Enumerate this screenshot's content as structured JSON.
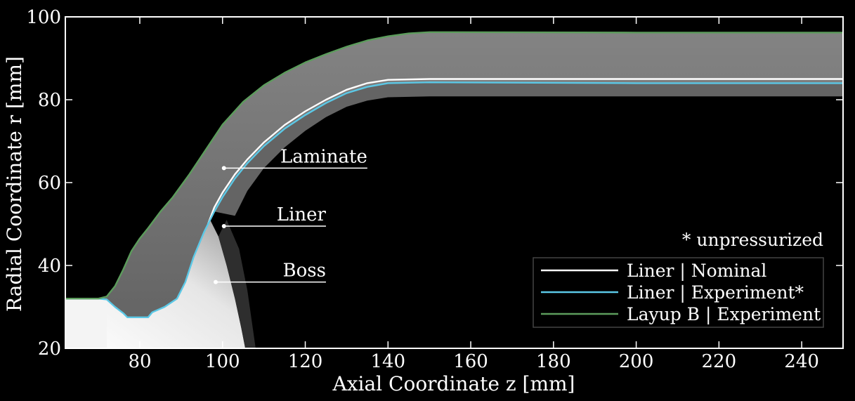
{
  "chart_data": {
    "type": "line",
    "background": "CT scan cross-section of pressure vessel dome (grayscale)",
    "xlabel": "Axial  Coordinate z [mm]",
    "ylabel": "Radial Coordinate r [mm]",
    "xlim": [
      62,
      250
    ],
    "ylim": [
      20,
      100
    ],
    "xticks": [
      80,
      100,
      120,
      140,
      160,
      180,
      200,
      220,
      240
    ],
    "yticks": [
      20,
      40,
      60,
      80,
      100
    ],
    "grid": false,
    "legend_position": "bottom-right",
    "note": "* unpressurized",
    "series": [
      {
        "name": "Liner | Nominal",
        "color": "#ffffff",
        "points": [
          [
            96.5,
            50
          ],
          [
            98,
            54
          ],
          [
            100,
            57.6
          ],
          [
            103,
            62
          ],
          [
            106,
            65.6
          ],
          [
            110,
            69.7
          ],
          [
            115,
            73.9
          ],
          [
            120,
            77.2
          ],
          [
            125,
            80
          ],
          [
            130,
            82.4
          ],
          [
            135,
            84
          ],
          [
            140,
            84.8
          ],
          [
            150,
            85
          ],
          [
            200,
            85
          ],
          [
            250,
            85
          ]
        ]
      },
      {
        "name": "Liner | Experiment*",
        "color": "#5bc8e6",
        "points": [
          [
            62,
            32
          ],
          [
            70,
            32
          ],
          [
            72,
            31.8
          ],
          [
            74,
            30
          ],
          [
            76,
            28.5
          ],
          [
            77,
            27.5
          ],
          [
            82,
            27.5
          ],
          [
            83,
            28.7
          ],
          [
            86,
            30
          ],
          [
            89,
            32
          ],
          [
            91,
            36
          ],
          [
            93,
            42
          ],
          [
            95.5,
            48
          ],
          [
            98,
            53
          ],
          [
            100,
            56.5
          ],
          [
            103,
            61
          ],
          [
            106,
            64.7
          ],
          [
            110,
            68.8
          ],
          [
            115,
            73
          ],
          [
            120,
            76.3
          ],
          [
            125,
            79.2
          ],
          [
            130,
            81.6
          ],
          [
            135,
            83.1
          ],
          [
            140,
            84
          ],
          [
            150,
            84.2
          ],
          [
            200,
            84
          ],
          [
            250,
            84
          ]
        ]
      },
      {
        "name": "Layup B | Experiment",
        "color": "#5c9c5c",
        "points": [
          [
            62,
            32
          ],
          [
            70,
            32
          ],
          [
            72,
            32.5
          ],
          [
            74,
            35
          ],
          [
            76,
            39
          ],
          [
            78,
            43.5
          ],
          [
            80,
            46.5
          ],
          [
            82,
            49
          ],
          [
            85,
            53
          ],
          [
            88,
            56.5
          ],
          [
            92,
            62
          ],
          [
            96,
            68
          ],
          [
            100,
            74
          ],
          [
            105,
            79.5
          ],
          [
            110,
            83.5
          ],
          [
            115,
            86.5
          ],
          [
            120,
            89
          ],
          [
            125,
            91
          ],
          [
            130,
            92.8
          ],
          [
            135,
            94.3
          ],
          [
            140,
            95.3
          ],
          [
            145,
            96
          ],
          [
            150,
            96.3
          ],
          [
            200,
            96.2
          ],
          [
            250,
            96.2
          ]
        ]
      }
    ],
    "annotations": [
      {
        "label": "Laminate",
        "point": [
          100,
          63.5
        ],
        "underline_to_z": 135
      },
      {
        "label": "Liner",
        "point": [
          100,
          49.5
        ],
        "underline_to_z": 125
      },
      {
        "label": "Boss",
        "point": [
          98,
          36
        ],
        "underline_to_z": 125
      }
    ]
  }
}
